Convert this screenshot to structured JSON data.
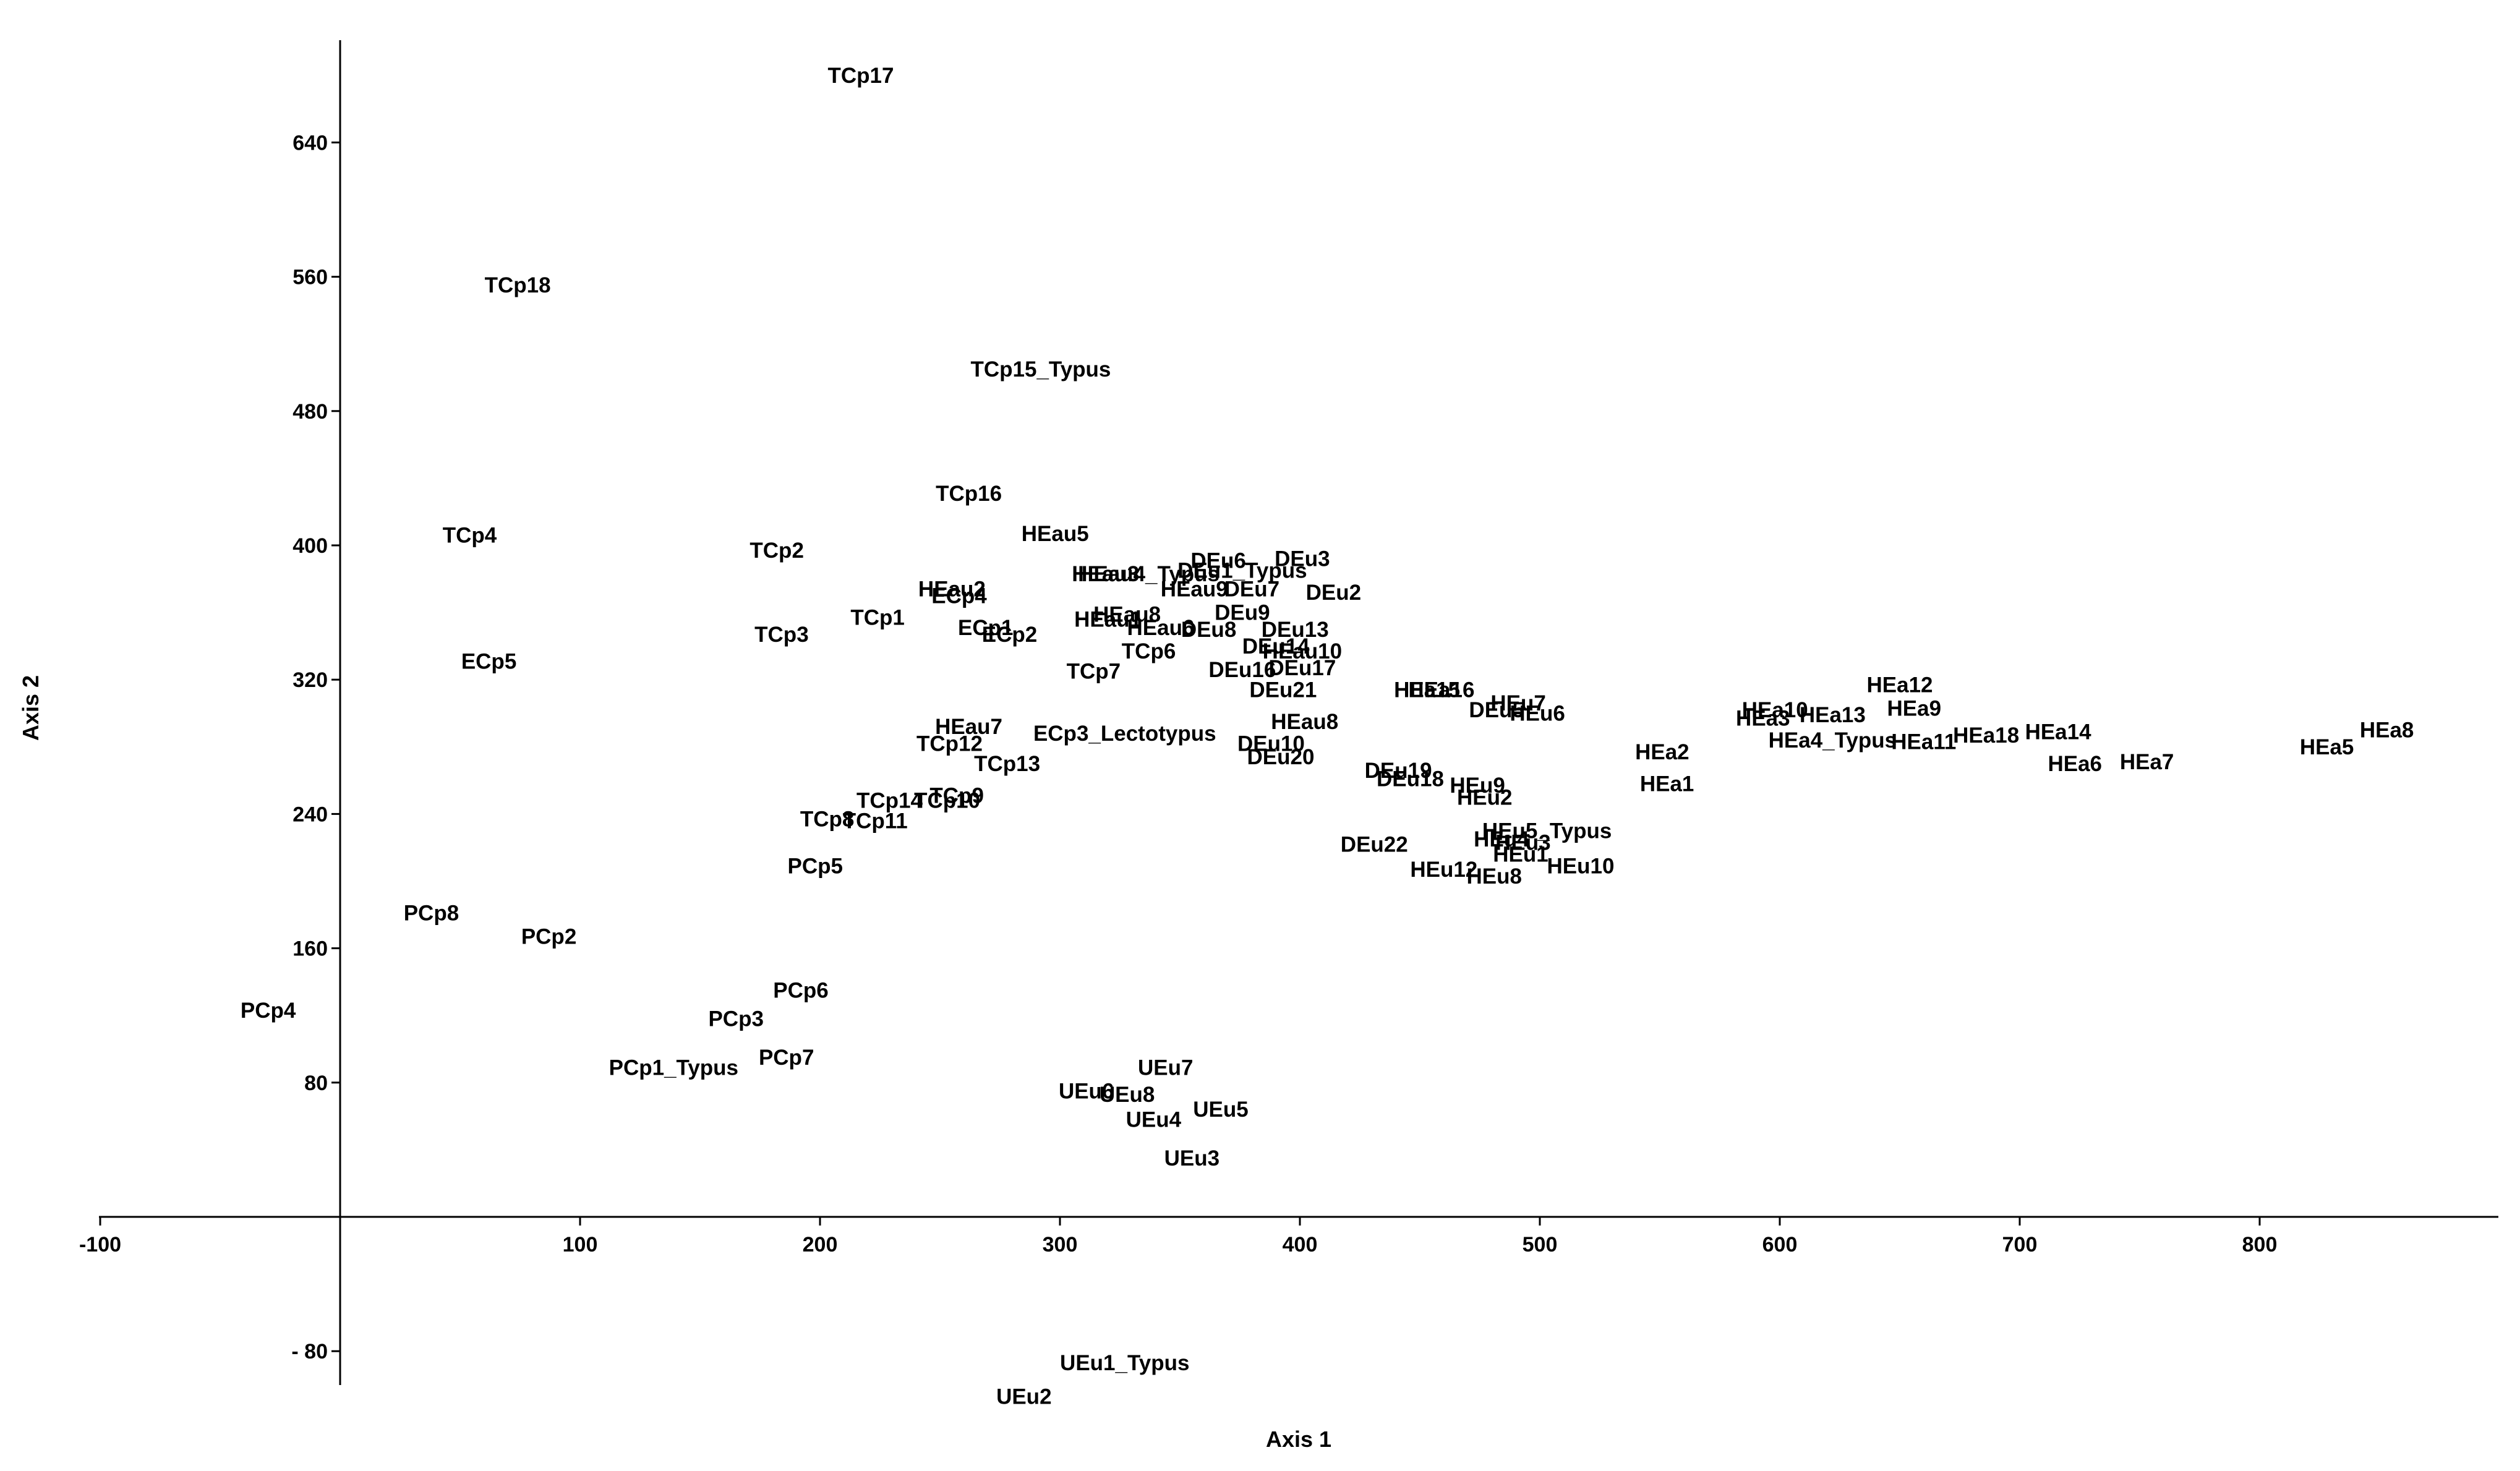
{
  "chart_data": {
    "type": "scatter",
    "title": "",
    "xlabel": "Axis 1",
    "ylabel": "Axis 2",
    "xlim": [
      -100,
      900
    ],
    "ylim": [
      -100,
      705
    ],
    "xticks": [
      -100,
      100,
      200,
      300,
      400,
      500,
      600,
      700,
      800
    ],
    "xtick_labels": [
      "-100",
      "100",
      "200",
      "300",
      "400",
      "500",
      "600",
      "700",
      "800"
    ],
    "yticks": [
      640,
      560,
      480,
      400,
      320,
      240,
      160,
      80,
      -80
    ],
    "ytick_labels": [
      "640",
      "560",
      "480",
      "400",
      "320",
      "240",
      "160",
      "80",
      "- 80"
    ],
    "grid": false,
    "points": [
      {
        "label": "TCp17",
        "x": 217,
        "y": 680
      },
      {
        "label": "TCp18",
        "x": 74,
        "y": 555
      },
      {
        "label": "TCp15_Typus",
        "x": 292,
        "y": 505
      },
      {
        "label": "TCp16",
        "x": 262,
        "y": 431
      },
      {
        "label": "TCp4",
        "x": 54,
        "y": 406
      },
      {
        "label": "TCp2",
        "x": 182,
        "y": 397
      },
      {
        "label": "HEau5",
        "x": 298,
        "y": 407
      },
      {
        "label": "HEau2",
        "x": 255,
        "y": 374
      },
      {
        "label": "ECp4",
        "x": 258,
        "y": 370
      },
      {
        "label": "TCp1",
        "x": 224,
        "y": 357
      },
      {
        "label": "TCp3",
        "x": 184,
        "y": 347
      },
      {
        "label": "ECp1",
        "x": 269,
        "y": 351
      },
      {
        "label": "ECp2",
        "x": 279,
        "y": 347
      },
      {
        "label": "ECp5",
        "x": 62,
        "y": 331
      },
      {
        "label": "HEau3",
        "x": 319,
        "y": 383
      },
      {
        "label": "HEau4_Typus",
        "x": 337,
        "y": 383
      },
      {
        "label": "DEu6",
        "x": 366,
        "y": 391
      },
      {
        "label": "DEu3",
        "x": 401,
        "y": 392
      },
      {
        "label": "DEu1_Typus",
        "x": 376,
        "y": 385
      },
      {
        "label": "HEau9",
        "x": 356,
        "y": 374
      },
      {
        "label": "DEu7",
        "x": 380,
        "y": 374
      },
      {
        "label": "DEu2",
        "x": 414,
        "y": 372
      },
      {
        "label": "HEau8",
        "x": 328,
        "y": 359
      },
      {
        "label": "HEau1",
        "x": 320,
        "y": 356
      },
      {
        "label": "DEu9",
        "x": 376,
        "y": 360
      },
      {
        "label": "HEau6",
        "x": 342,
        "y": 351
      },
      {
        "label": "DEu8",
        "x": 362,
        "y": 350
      },
      {
        "label": "DEu13",
        "x": 398,
        "y": 350
      },
      {
        "label": "DEu14",
        "x": 390,
        "y": 340
      },
      {
        "label": "HEau10",
        "x": 401,
        "y": 337
      },
      {
        "label": "TCp6",
        "x": 337,
        "y": 337
      },
      {
        "label": "TCp7",
        "x": 314,
        "y": 325
      },
      {
        "label": "DEu16",
        "x": 376,
        "y": 326
      },
      {
        "label": "DEu17",
        "x": 401,
        "y": 327
      },
      {
        "label": "DEu21",
        "x": 393,
        "y": 314
      },
      {
        "label": "HEa15",
        "x": 453,
        "y": 314
      },
      {
        "label": "HEa16",
        "x": 459,
        "y": 314
      },
      {
        "label": "DEu5",
        "x": 482,
        "y": 302
      },
      {
        "label": "HEu7",
        "x": 491,
        "y": 306
      },
      {
        "label": "HEu6",
        "x": 499,
        "y": 300
      },
      {
        "label": "HEau7",
        "x": 262,
        "y": 292
      },
      {
        "label": "ECp3_Lectotypus",
        "x": 327,
        "y": 288
      },
      {
        "label": "HEau8",
        "x": 402,
        "y": 295
      },
      {
        "label": "TCp12",
        "x": 254,
        "y": 282
      },
      {
        "label": "DEu10",
        "x": 388,
        "y": 282
      },
      {
        "label": "DEu20",
        "x": 392,
        "y": 274
      },
      {
        "label": "TCp13",
        "x": 278,
        "y": 270
      },
      {
        "label": "DEu19",
        "x": 441,
        "y": 266
      },
      {
        "label": "DEu18",
        "x": 446,
        "y": 261
      },
      {
        "label": "HEu9",
        "x": 474,
        "y": 257
      },
      {
        "label": "HEu2",
        "x": 477,
        "y": 250
      },
      {
        "label": "TCp9",
        "x": 257,
        "y": 251
      },
      {
        "label": "TCp14",
        "x": 229,
        "y": 248
      },
      {
        "label": "TCp10",
        "x": 253,
        "y": 248
      },
      {
        "label": "TCp8",
        "x": 203,
        "y": 237
      },
      {
        "label": "TCp11",
        "x": 223,
        "y": 236
      },
      {
        "label": "HEu5_Typus",
        "x": 503,
        "y": 230
      },
      {
        "label": "HEu4",
        "x": 484,
        "y": 225
      },
      {
        "label": "HEu3",
        "x": 493,
        "y": 223
      },
      {
        "label": "HEu1",
        "x": 492,
        "y": 216
      },
      {
        "label": "DEu22",
        "x": 431,
        "y": 222
      },
      {
        "label": "HEu12",
        "x": 460,
        "y": 207
      },
      {
        "label": "HEu8",
        "x": 481,
        "y": 203
      },
      {
        "label": "HEu10",
        "x": 517,
        "y": 209
      },
      {
        "label": "PCp5",
        "x": 198,
        "y": 209
      },
      {
        "label": "PCp8",
        "x": 38,
        "y": 181
      },
      {
        "label": "PCp2",
        "x": 87,
        "y": 167
      },
      {
        "label": "PCp4",
        "x": -30,
        "y": 123
      },
      {
        "label": "PCp6",
        "x": 192,
        "y": 135
      },
      {
        "label": "PCp3",
        "x": 165,
        "y": 118
      },
      {
        "label": "PCp1_Typus",
        "x": 139,
        "y": 89
      },
      {
        "label": "PCp7",
        "x": 186,
        "y": 95
      },
      {
        "label": "UEu7",
        "x": 344,
        "y": 89
      },
      {
        "label": "UEu6",
        "x": 311,
        "y": 75
      },
      {
        "label": "UEu8",
        "x": 328,
        "y": 73
      },
      {
        "label": "UEu4",
        "x": 339,
        "y": 58
      },
      {
        "label": "UEu5",
        "x": 367,
        "y": 64
      },
      {
        "label": "UEu3",
        "x": 355,
        "y": 35
      },
      {
        "label": "UEu1_Typus",
        "x": 327,
        "y": -87
      },
      {
        "label": "UEu2",
        "x": 285,
        "y": -107
      },
      {
        "label": "HEa2",
        "x": 551,
        "y": 277
      },
      {
        "label": "HEa1",
        "x": 553,
        "y": 258
      },
      {
        "label": "HEa10",
        "x": 598,
        "y": 302
      },
      {
        "label": "HEa3",
        "x": 593,
        "y": 297
      },
      {
        "label": "HEa13",
        "x": 622,
        "y": 299
      },
      {
        "label": "HEa12",
        "x": 650,
        "y": 317
      },
      {
        "label": "HEa9",
        "x": 656,
        "y": 303
      },
      {
        "label": "HEa4_Typus",
        "x": 622,
        "y": 284
      },
      {
        "label": "HEa11",
        "x": 660,
        "y": 283
      },
      {
        "label": "HEa18",
        "x": 686,
        "y": 287
      },
      {
        "label": "HEa14",
        "x": 716,
        "y": 289
      },
      {
        "label": "HEa6",
        "x": 723,
        "y": 270
      },
      {
        "label": "HEa7",
        "x": 753,
        "y": 271
      },
      {
        "label": "HEa8",
        "x": 853,
        "y": 290
      },
      {
        "label": "HEa5",
        "x": 828,
        "y": 280
      }
    ]
  }
}
